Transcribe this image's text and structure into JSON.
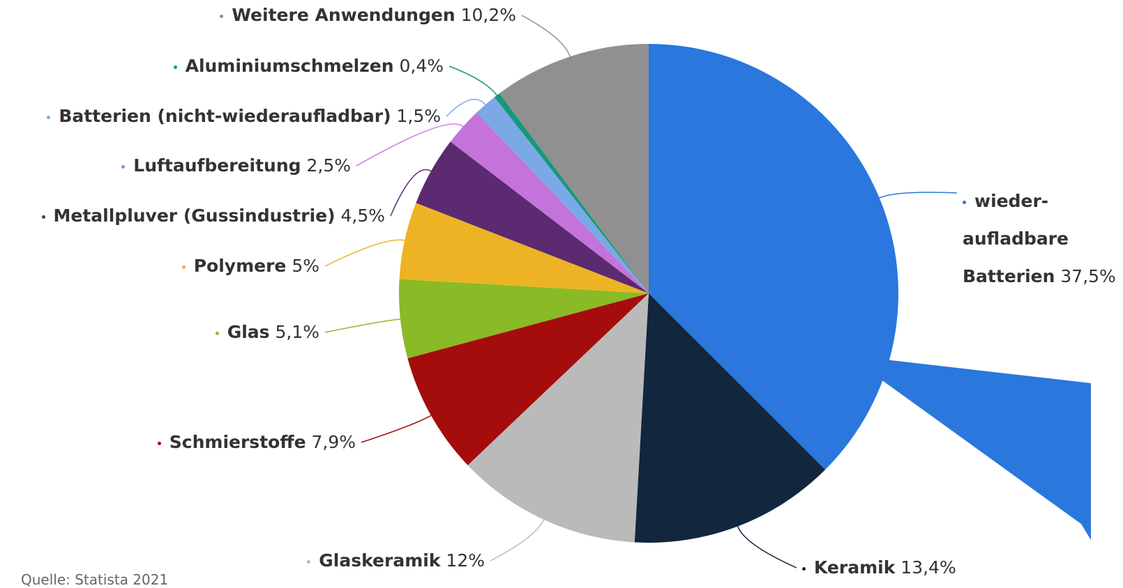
{
  "chart_data": {
    "type": "pie",
    "categories": [
      "wieder-aufladbare Batterien",
      "Keramik",
      "Glaskeramik",
      "Schmierstoffe",
      "Glas",
      "Polymere",
      "Metallpluver (Gussindustrie)",
      "Luftaufbereitung",
      "Batterien (nicht-wiederaufladbar)",
      "Aluminiumschmelzen",
      "Weitere Anwendungen"
    ],
    "values": [
      37.5,
      13.4,
      12,
      7.9,
      5.1,
      5,
      4.5,
      2.5,
      1.5,
      0.4,
      10.2
    ],
    "value_labels": [
      "37,5%",
      "13,4%",
      "12%",
      "7,9%",
      "5,1%",
      "5%",
      "4,5%",
      "2,5%",
      "1,5%",
      "0,4%",
      "10,2%"
    ],
    "colors": [
      "#2a77dd",
      "#12263d",
      "#bababa",
      "#a50c0c",
      "#8aba25",
      "#ecb424",
      "#5c2a70",
      "#c373d9",
      "#7aa9e6",
      "#17987a",
      "#909090"
    ],
    "source": "Quelle: Statista 2021"
  }
}
